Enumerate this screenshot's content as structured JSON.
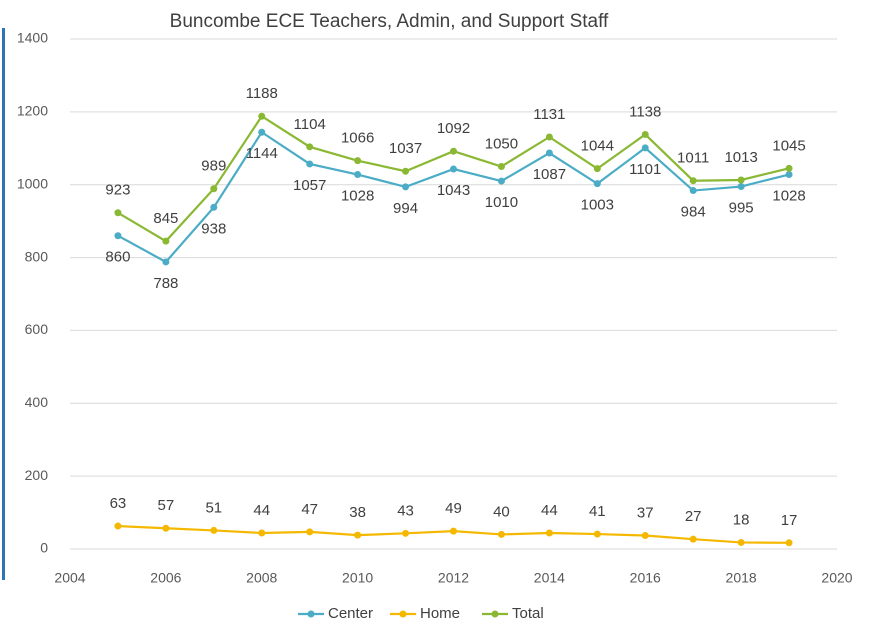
{
  "chart_data": {
    "type": "line",
    "title": "Buncombe ECE Teachers, Admin, and Support Staff",
    "x": [
      2005,
      2006,
      2007,
      2008,
      2009,
      2010,
      2011,
      2012,
      2013,
      2014,
      2015,
      2016,
      2017,
      2018,
      2019
    ],
    "series": [
      {
        "name": "Center",
        "color": "#4bacc6",
        "values": [
          860,
          788,
          938,
          1144,
          1057,
          1028,
          994,
          1043,
          1010,
          1087,
          1003,
          1101,
          984,
          995,
          1028
        ]
      },
      {
        "name": "Home",
        "color": "#f5b800",
        "values": [
          63,
          57,
          51,
          44,
          47,
          38,
          43,
          49,
          40,
          44,
          41,
          37,
          27,
          18,
          17
        ]
      },
      {
        "name": "Total",
        "color": "#8ab833",
        "values": [
          923,
          845,
          989,
          1188,
          1104,
          1066,
          1037,
          1092,
          1050,
          1131,
          1044,
          1138,
          1011,
          1013,
          1045
        ]
      }
    ],
    "xlim": [
      2004,
      2020
    ],
    "xticks": [
      2004,
      2006,
      2008,
      2010,
      2012,
      2014,
      2016,
      2018,
      2020
    ],
    "ylim": [
      0,
      1400
    ],
    "yticks": [
      0,
      200,
      400,
      600,
      800,
      1000,
      1200,
      1400
    ],
    "grid": true,
    "legend": "bottom"
  }
}
